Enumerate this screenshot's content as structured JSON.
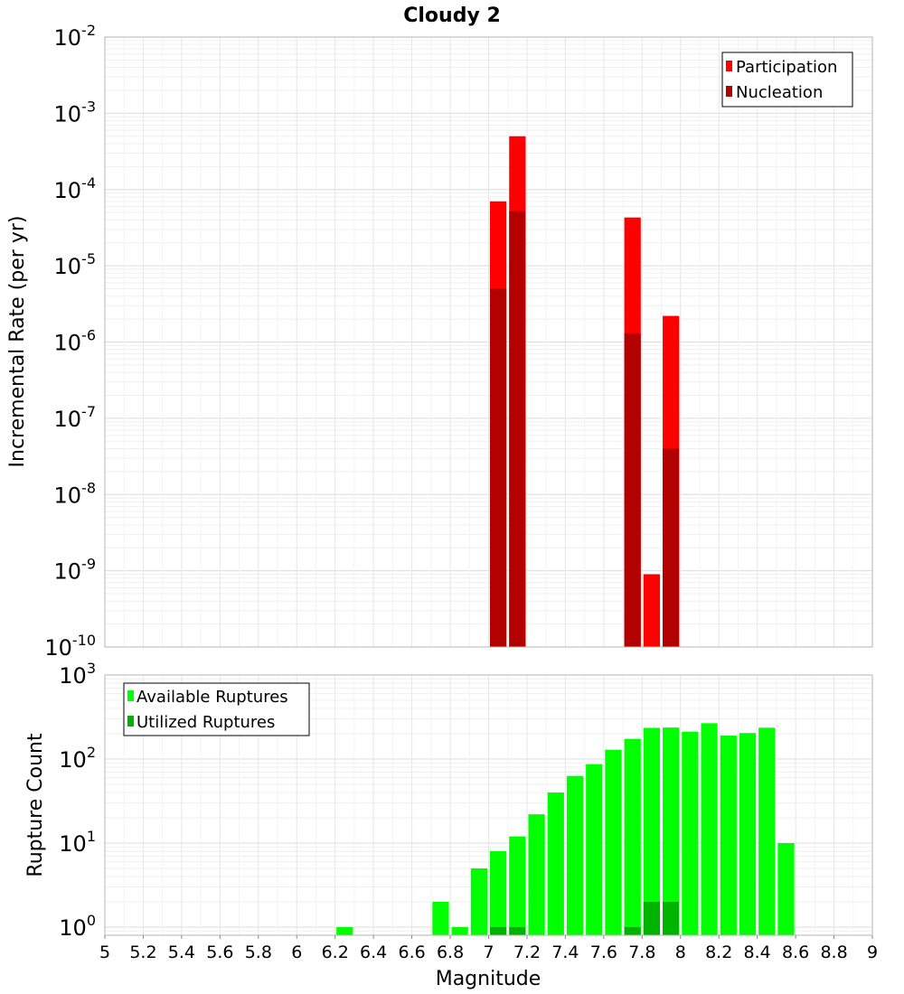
{
  "title": "Cloudy 2",
  "chart_data": [
    {
      "type": "bar",
      "xlabel": "Magnitude",
      "ylabel": "Incremental Rate (per yr)",
      "yscale": "log",
      "ylim": [
        1e-10,
        0.01
      ],
      "xlim": [
        5,
        9
      ],
      "grid": true,
      "legend_position": "top-right",
      "bar_width": 0.1,
      "series": [
        {
          "name": "Participation",
          "color": "#ff0000",
          "x": [
            7.05,
            7.15,
            7.75,
            7.85,
            7.95
          ],
          "values": [
            7e-05,
            0.0005,
            4.3e-05,
            9e-10,
            2.2e-06
          ]
        },
        {
          "name": "Nucleation",
          "color": "#b30000",
          "x": [
            7.05,
            7.15,
            7.75,
            7.85,
            7.95
          ],
          "values": [
            5e-06,
            5.2e-05,
            1.3e-06,
            0,
            4e-08
          ]
        }
      ]
    },
    {
      "type": "bar",
      "xlabel": "Magnitude",
      "ylabel": "Rupture Count",
      "yscale": "log",
      "ylim": [
        0.8,
        1000
      ],
      "xlim": [
        5,
        9
      ],
      "grid": true,
      "legend_position": "top-left",
      "bar_width": 0.1,
      "series": [
        {
          "name": "Available Ruptures",
          "color": "#00ff00",
          "x": [
            6.25,
            6.75,
            6.85,
            6.95,
            7.05,
            7.15,
            7.25,
            7.35,
            7.45,
            7.55,
            7.65,
            7.75,
            7.85,
            7.95,
            8.05,
            8.15,
            8.25,
            8.35,
            8.45,
            8.55
          ],
          "values": [
            1,
            2,
            1,
            5,
            8,
            12,
            22,
            40,
            63,
            87,
            129,
            174,
            235,
            237,
            212,
            267,
            190,
            204,
            236,
            10
          ]
        },
        {
          "name": "Utilized Ruptures",
          "color": "#00b300",
          "x": [
            7.05,
            7.15,
            7.75,
            7.85,
            7.95
          ],
          "values": [
            1,
            1,
            1,
            2,
            2
          ]
        }
      ]
    }
  ],
  "x_ticks": [
    "5",
    "5.2",
    "5.4",
    "5.6",
    "5.8",
    "6",
    "6.2",
    "6.4",
    "6.6",
    "6.8",
    "7",
    "7.2",
    "7.4",
    "7.6",
    "7.8",
    "8",
    "8.2",
    "8.4",
    "8.6",
    "8.8",
    "9"
  ],
  "top_y_exponents": [
    "-2",
    "-3",
    "-4",
    "-5",
    "-6",
    "-7",
    "-8",
    "-9",
    "-10"
  ],
  "bottom_y_exponents": [
    "3",
    "2",
    "1",
    "0"
  ],
  "tick_base": "10"
}
